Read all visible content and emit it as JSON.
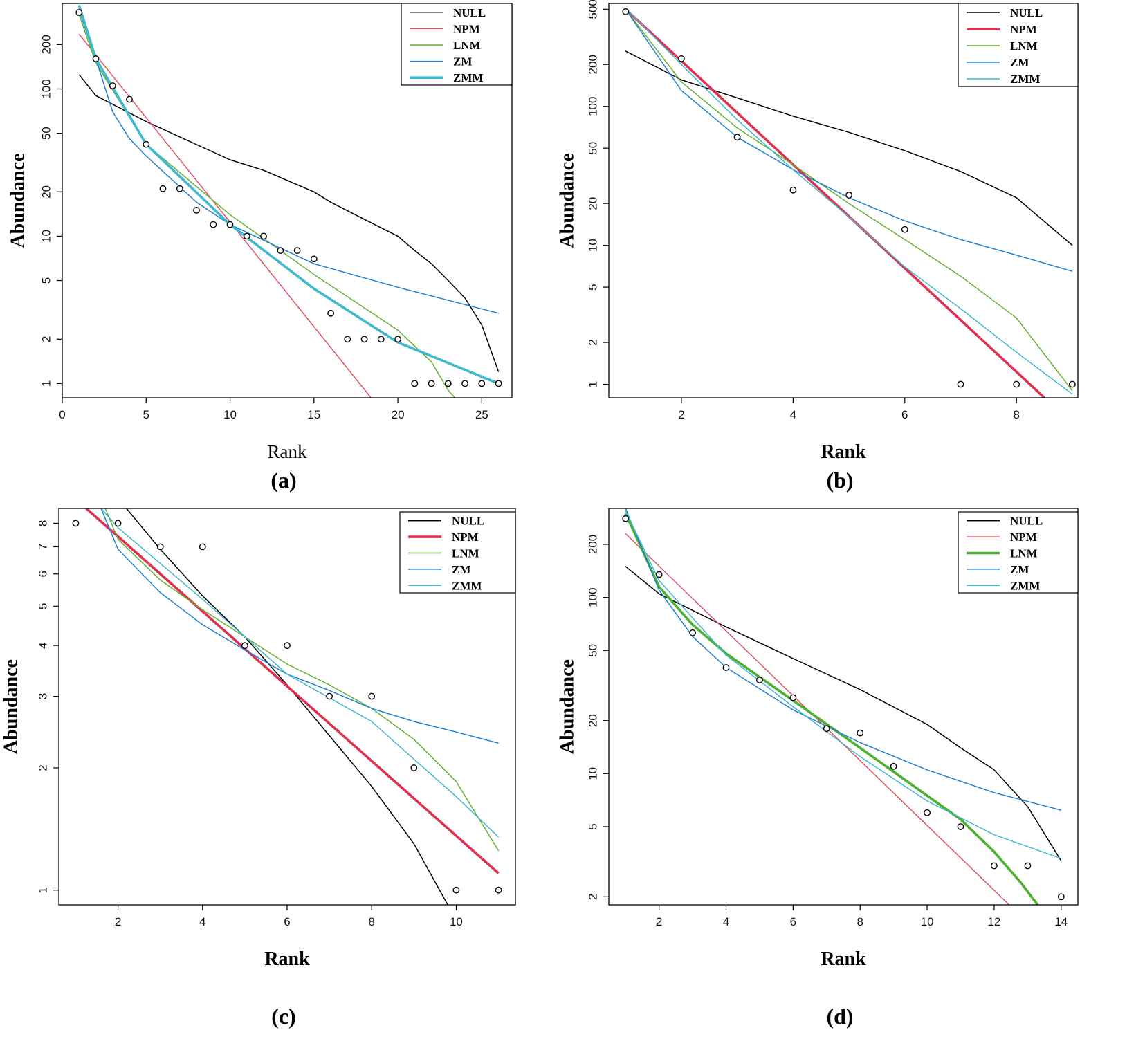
{
  "figure": {
    "label": "Rank-abundance model fits"
  },
  "chart_data": [
    {
      "type": "line",
      "panel": "(a)",
      "xlabel": "Rank",
      "ylabel": "Abundance",
      "xlabel_bold": false,
      "x_scale": "linear",
      "y_scale": "log",
      "xlim": [
        0,
        26.8
      ],
      "ylim": [
        0.8,
        380
      ],
      "x_ticks": [
        0,
        5,
        10,
        15,
        20,
        25
      ],
      "y_ticks": [
        1,
        2,
        5,
        10,
        20,
        50,
        100,
        200
      ],
      "points": [
        [
          1,
          330
        ],
        [
          2,
          160
        ],
        [
          3,
          105
        ],
        [
          4,
          85
        ],
        [
          5,
          42
        ],
        [
          6,
          21
        ],
        [
          7,
          21
        ],
        [
          8,
          15
        ],
        [
          9,
          12
        ],
        [
          10,
          12
        ],
        [
          11,
          10
        ],
        [
          12,
          10
        ],
        [
          13,
          8
        ],
        [
          14,
          8
        ],
        [
          15,
          7
        ],
        [
          16,
          3
        ],
        [
          17,
          2
        ],
        [
          18,
          2
        ],
        [
          19,
          2
        ],
        [
          20,
          2
        ],
        [
          21,
          1
        ],
        [
          22,
          1
        ],
        [
          23,
          1
        ],
        [
          24,
          1
        ],
        [
          25,
          1
        ],
        [
          26,
          1
        ]
      ],
      "highlight": "ZMM",
      "series": [
        {
          "name": "NULL",
          "color": "#000000",
          "x": [
            1,
            2,
            5,
            10,
            12,
            15,
            16,
            18,
            20,
            21,
            22,
            23,
            24,
            25,
            26
          ],
          "y": [
            125,
            90,
            60,
            33,
            28,
            20,
            17,
            13,
            10,
            8,
            6.5,
            5,
            3.8,
            2.5,
            1.2
          ]
        },
        {
          "name": "NPM",
          "color": "#e05060",
          "x": [
            1,
            18.4
          ],
          "y": [
            235,
            0.8
          ]
        },
        {
          "name": "LNM",
          "color": "#66b030",
          "x": [
            1,
            2,
            5,
            10,
            15,
            20,
            22,
            23,
            23.4
          ],
          "y": [
            320,
            150,
            42,
            14,
            5.5,
            2.3,
            1.4,
            0.9,
            0.8
          ]
        },
        {
          "name": "ZM",
          "color": "#2080d0",
          "x": [
            1,
            2,
            3,
            4,
            5,
            8,
            10,
            15,
            20,
            26
          ],
          "y": [
            340,
            160,
            70,
            46,
            35,
            17,
            12,
            6.5,
            4.5,
            3
          ]
        },
        {
          "name": "ZMM",
          "color": "#40b8d0",
          "x": [
            1,
            2,
            5,
            10,
            15,
            20,
            26
          ],
          "y": [
            370,
            160,
            42,
            12,
            4.4,
            1.9,
            1
          ]
        }
      ]
    },
    {
      "type": "line",
      "panel": "(b)",
      "xlabel": "Rank",
      "ylabel": "Abundance",
      "xlabel_bold": true,
      "x_scale": "linear",
      "y_scale": "log",
      "xlim": [
        0.7,
        9.1
      ],
      "ylim": [
        0.8,
        550
      ],
      "x_ticks": [
        2,
        4,
        6,
        8
      ],
      "y_ticks": [
        1,
        2,
        5,
        10,
        20,
        50,
        100,
        200,
        500
      ],
      "points": [
        [
          1,
          480
        ],
        [
          2,
          220
        ],
        [
          3,
          60
        ],
        [
          4,
          25
        ],
        [
          5,
          23
        ],
        [
          6,
          13
        ],
        [
          7,
          1
        ],
        [
          8,
          1
        ],
        [
          9,
          1
        ]
      ],
      "highlight": "NPM",
      "series": [
        {
          "name": "NULL",
          "color": "#000000",
          "x": [
            1,
            2,
            3,
            4,
            5,
            6,
            7,
            8,
            9
          ],
          "y": [
            250,
            155,
            115,
            85,
            65,
            48,
            34,
            22,
            10
          ]
        },
        {
          "name": "NPM",
          "color": "#e03050",
          "x": [
            1,
            8.5
          ],
          "y": [
            500,
            0.8
          ]
        },
        {
          "name": "LNM",
          "color": "#66b030",
          "x": [
            1,
            2,
            3,
            4,
            5,
            6,
            7,
            8,
            9
          ],
          "y": [
            500,
            150,
            70,
            38,
            20,
            11,
            6,
            3,
            0.9
          ]
        },
        {
          "name": "ZM",
          "color": "#2080d0",
          "x": [
            1,
            2,
            3,
            4,
            5,
            6,
            7,
            8,
            9
          ],
          "y": [
            500,
            130,
            60,
            35,
            22,
            15,
            11,
            8.5,
            6.5
          ]
        },
        {
          "name": "ZMM",
          "color": "#40b8d0",
          "x": [
            1,
            2,
            3,
            4,
            5,
            6,
            7,
            8,
            9
          ],
          "y": [
            510,
            200,
            80,
            35,
            16,
            7,
            3.5,
            1.7,
            0.85
          ]
        }
      ]
    },
    {
      "type": "line",
      "panel": "(c)",
      "xlabel": "Rank",
      "ylabel": "Abundance",
      "xlabel_bold": true,
      "x_scale": "linear",
      "y_scale": "log",
      "xlim": [
        0.6,
        11.4
      ],
      "ylim": [
        0.92,
        8.7
      ],
      "x_ticks": [
        2,
        4,
        6,
        8,
        10
      ],
      "y_ticks": [
        1,
        2,
        3,
        4,
        5,
        6,
        7,
        8
      ],
      "points": [
        [
          1,
          8
        ],
        [
          2,
          8
        ],
        [
          3,
          7
        ],
        [
          4,
          7
        ],
        [
          5,
          4
        ],
        [
          6,
          4
        ],
        [
          7,
          3
        ],
        [
          8,
          3
        ],
        [
          9,
          2
        ],
        [
          10,
          1
        ],
        [
          11,
          1
        ]
      ],
      "highlight": "NPM",
      "series": [
        {
          "name": "NULL",
          "color": "#000000",
          "x": [
            2.2,
            3,
            4,
            5,
            6,
            7,
            8,
            9,
            9.8
          ],
          "y": [
            8.7,
            6.9,
            5.3,
            4.2,
            3.2,
            2.4,
            1.8,
            1.3,
            0.92
          ]
        },
        {
          "name": "NPM",
          "color": "#e03050",
          "x": [
            1.25,
            11
          ],
          "y": [
            8.7,
            1.1
          ]
        },
        {
          "name": "LNM",
          "color": "#66b030",
          "x": [
            1.7,
            2,
            3,
            4,
            5,
            6,
            7,
            8,
            9,
            10,
            11
          ],
          "y": [
            8.7,
            7.3,
            5.8,
            4.9,
            4.2,
            3.6,
            3.2,
            2.8,
            2.35,
            1.85,
            1.25
          ]
        },
        {
          "name": "ZM",
          "color": "#2080d0",
          "x": [
            1.6,
            2,
            3,
            4,
            5,
            6,
            7,
            8,
            9,
            10,
            11
          ],
          "y": [
            8.7,
            6.9,
            5.4,
            4.5,
            3.9,
            3.4,
            3.1,
            2.8,
            2.6,
            2.45,
            2.3
          ]
        },
        {
          "name": "ZMM",
          "color": "#40b8d0",
          "x": [
            1.6,
            2,
            4,
            6,
            8,
            9,
            10,
            11
          ],
          "y": [
            8.7,
            7.8,
            5.2,
            3.4,
            2.6,
            2.1,
            1.7,
            1.35
          ]
        }
      ]
    },
    {
      "type": "line",
      "panel": "(d)",
      "xlabel": "Rank",
      "ylabel": "Abundance",
      "xlabel_bold": true,
      "x_scale": "linear",
      "y_scale": "log",
      "xlim": [
        0.5,
        14.5
      ],
      "ylim": [
        1.8,
        320
      ],
      "x_ticks": [
        2,
        4,
        6,
        8,
        10,
        12,
        14
      ],
      "y_ticks": [
        2,
        5,
        10,
        20,
        50,
        100,
        200
      ],
      "points": [
        [
          1,
          280
        ],
        [
          2,
          135
        ],
        [
          3,
          63
        ],
        [
          4,
          40
        ],
        [
          5,
          34
        ],
        [
          6,
          27
        ],
        [
          7,
          18
        ],
        [
          8,
          17
        ],
        [
          9,
          11
        ],
        [
          10,
          6
        ],
        [
          11,
          5
        ],
        [
          12,
          3
        ],
        [
          13,
          3
        ],
        [
          14,
          2
        ]
      ],
      "highlight": "LNM",
      "series": [
        {
          "name": "NULL",
          "color": "#000000",
          "x": [
            1,
            2,
            4,
            6,
            8,
            10,
            11,
            12,
            13,
            14
          ],
          "y": [
            150,
            105,
            68,
            45,
            30,
            19,
            14,
            10.5,
            6.5,
            3.2
          ]
        },
        {
          "name": "NPM",
          "color": "#e05060",
          "x": [
            1,
            12.45
          ],
          "y": [
            230,
            1.8
          ]
        },
        {
          "name": "LNM",
          "color": "#4cb030",
          "x": [
            1,
            2,
            3,
            4,
            6,
            8,
            10,
            11,
            12,
            12.8,
            13.3
          ],
          "y": [
            300,
            115,
            70,
            48,
            26,
            14,
            7.5,
            5.5,
            3.6,
            2.4,
            1.8
          ]
        },
        {
          "name": "ZM",
          "color": "#2080d0",
          "x": [
            1,
            2,
            3,
            4,
            6,
            8,
            10,
            12,
            14
          ],
          "y": [
            320,
            110,
            60,
            40,
            23,
            15,
            10.5,
            7.8,
            6.2
          ]
        },
        {
          "name": "ZMM",
          "color": "#40b8d0",
          "x": [
            1,
            2,
            4,
            6,
            8,
            10,
            12,
            14
          ],
          "y": [
            310,
            125,
            47,
            24,
            12.5,
            7,
            4.5,
            3.3
          ]
        }
      ]
    }
  ]
}
